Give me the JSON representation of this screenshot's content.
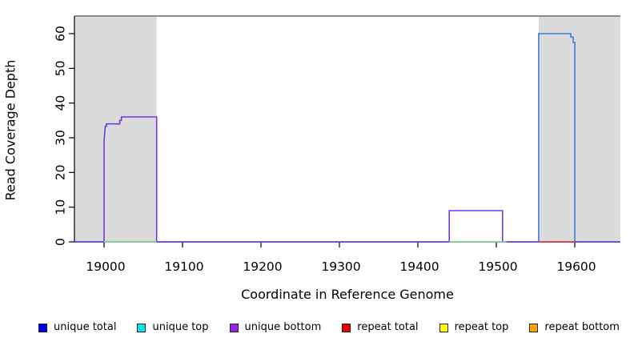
{
  "chart_data": {
    "type": "line",
    "subtype": "step-coverage-plot",
    "title": "",
    "xlabel": "Coordinate in Reference Genome",
    "ylabel": "Read Coverage Depth",
    "xlim": [
      18962,
      19658
    ],
    "ylim": [
      0,
      65
    ],
    "grid": false,
    "x_ticks": [
      19000,
      19100,
      19200,
      19300,
      19400,
      19500,
      19600
    ],
    "y_ticks": [
      0,
      10,
      20,
      30,
      40,
      50,
      60
    ],
    "colors": {
      "shaded_region_fill": "#dbdbdb",
      "top_border_line": "#8c8c8c",
      "axis": "#000000"
    },
    "shaded_regions": [
      {
        "name": "masked-region-left",
        "from": 18962,
        "to": 19067
      },
      {
        "name": "masked-region-right",
        "from": 19554,
        "to": 19658
      }
    ],
    "series": [
      {
        "name": "unique total",
        "color": "#3b7cde",
        "paths": [
          [
            [
              18962,
              0
            ],
            [
              19554,
              0
            ],
            [
              19554,
              60
            ],
            [
              19595,
              60
            ],
            [
              19595,
              59
            ],
            [
              19598,
              59
            ],
            [
              19598,
              57.5
            ],
            [
              19600,
              57.5
            ],
            [
              19600,
              0
            ],
            [
              19658,
              0
            ]
          ]
        ]
      },
      {
        "name": "unique bottom",
        "color": "#6d3be6",
        "paths": [
          [
            [
              18962,
              0
            ],
            [
              19000,
              0
            ],
            [
              19000,
              29
            ],
            [
              19000.5,
              30.5
            ],
            [
              19001,
              32
            ],
            [
              19001.5,
              33.3
            ],
            [
              19003,
              33.3
            ],
            [
              19003,
              34
            ],
            [
              19020,
              34
            ],
            [
              19020,
              35
            ],
            [
              19022,
              35
            ],
            [
              19022,
              36
            ],
            [
              19067,
              36
            ],
            [
              19067,
              0
            ],
            [
              19440,
              0
            ],
            [
              19440,
              9
            ],
            [
              19508,
              9
            ],
            [
              19508,
              0
            ],
            [
              19658,
              0
            ]
          ]
        ]
      },
      {
        "name": "zero coverage green",
        "color": "#8fd98f",
        "paths": [
          [
            [
              19000,
              0
            ],
            [
              19067,
              0
            ]
          ],
          [
            [
              19440,
              0
            ],
            [
              19513,
              0
            ]
          ]
        ]
      },
      {
        "name": "repeat total zero",
        "color": "#e03c3c",
        "paths": [
          [
            [
              19554,
              0
            ],
            [
              19600,
              0
            ]
          ]
        ]
      }
    ]
  },
  "legend": {
    "items": [
      {
        "label": "unique total",
        "color": "#0000ee"
      },
      {
        "label": "unique top",
        "color": "#00e5ee"
      },
      {
        "label": "unique bottom",
        "color": "#9b1ff0"
      },
      {
        "label": "repeat total",
        "color": "#ee0000"
      },
      {
        "label": "repeat top",
        "color": "#ffff00"
      },
      {
        "label": "repeat bottom",
        "color": "#ffa500"
      }
    ]
  }
}
